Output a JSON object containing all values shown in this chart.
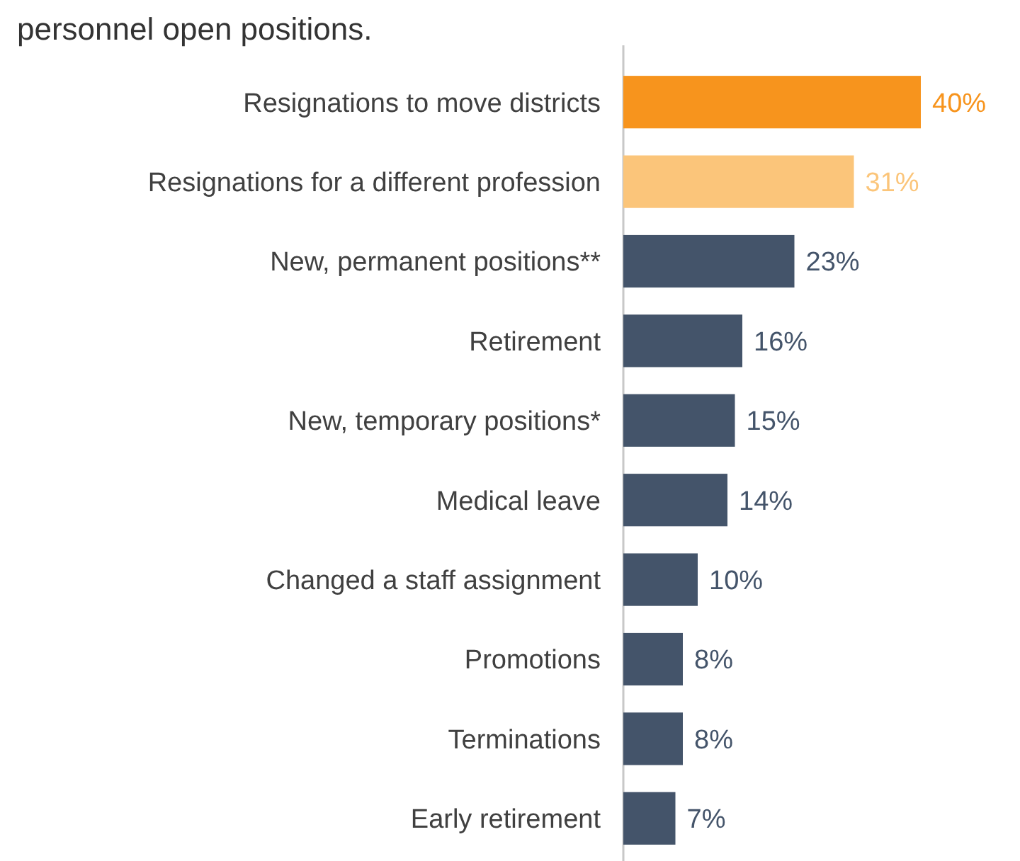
{
  "chart_data": {
    "type": "bar",
    "orientation": "horizontal",
    "title": "personnel open positions.",
    "categories": [
      "Resignations to move districts",
      "Resignations for a different profession",
      "New, permanent positions**",
      "Retirement",
      "New, temporary positions*",
      "Medical leave",
      "Changed a staff assignment",
      "Promotions",
      "Terminations",
      "Early retirement"
    ],
    "values": [
      40,
      31,
      23,
      16,
      15,
      14,
      10,
      8,
      8,
      7
    ],
    "colors": [
      "#f7941d",
      "#fbc57a",
      "#44546a",
      "#44546a",
      "#44546a",
      "#44546a",
      "#44546a",
      "#44546a",
      "#44546a",
      "#44546a"
    ],
    "value_labels": [
      "40%",
      "31%",
      "23%",
      "16%",
      "15%",
      "14%",
      "10%",
      "8%",
      "8%",
      "7%"
    ],
    "xlim": [
      0,
      40
    ],
    "tick_labels": "y"
  }
}
